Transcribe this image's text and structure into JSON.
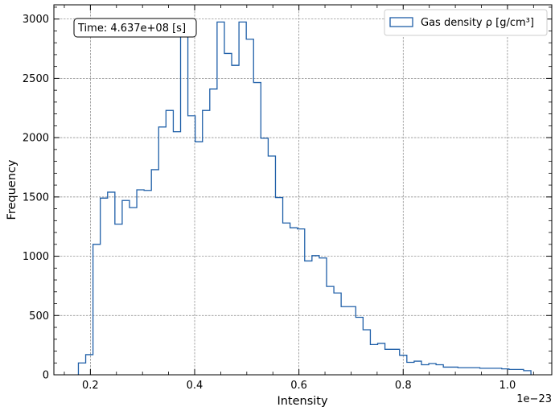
{
  "chart_data": {
    "type": "histogram",
    "xlabel": "Intensity",
    "ylabel": "Frequency",
    "x_offset_label": "1e−23",
    "x_scale": 1e-23,
    "xlim": [
      0.13,
      1.085
    ],
    "ylim": [
      0,
      3120
    ],
    "xticks": [
      0.2,
      0.4,
      0.6,
      0.8,
      1.0
    ],
    "xtick_labels": [
      "0.2",
      "0.4",
      "0.6",
      "0.8",
      "1.0"
    ],
    "yticks": [
      0,
      500,
      1000,
      1500,
      2000,
      2500,
      3000
    ],
    "ytick_labels": [
      "0",
      "500",
      "1000",
      "1500",
      "2000",
      "2500",
      "3000"
    ],
    "grid": true,
    "legend_position": "top-right",
    "series": [
      {
        "name": "Gas density ρ [g/cm³]",
        "color": "#1f5fa8",
        "bin_edges": [
          0.177,
          0.191,
          0.205,
          0.219,
          0.233,
          0.247,
          0.261,
          0.275,
          0.289,
          0.303,
          0.317,
          0.331,
          0.345,
          0.359,
          0.373,
          0.387,
          0.401,
          0.415,
          0.429,
          0.443,
          0.457,
          0.471,
          0.485,
          0.499,
          0.513,
          0.527,
          0.541,
          0.555,
          0.569,
          0.583,
          0.597,
          0.611,
          0.625,
          0.639,
          0.653,
          0.667,
          0.681,
          0.695,
          0.709,
          0.723,
          0.737,
          0.751,
          0.765,
          0.779,
          0.793,
          0.807,
          0.821,
          0.835,
          0.849,
          0.863,
          0.877,
          0.891,
          0.905,
          0.919,
          0.933,
          0.947,
          0.961,
          0.975,
          0.989,
          1.003,
          1.017,
          1.031,
          1.045
        ],
        "counts": [
          100,
          170,
          1100,
          1490,
          1540,
          1270,
          1470,
          1410,
          1560,
          1555,
          1730,
          2090,
          2230,
          2050,
          2940,
          2185,
          1965,
          2230,
          2410,
          2975,
          2710,
          2610,
          2975,
          2830,
          2465,
          1995,
          1845,
          1495,
          1280,
          1240,
          1230,
          960,
          1005,
          985,
          745,
          690,
          575,
          575,
          485,
          380,
          255,
          265,
          215,
          215,
          165,
          105,
          115,
          85,
          95,
          85,
          65,
          65,
          60,
          60,
          60,
          55,
          55,
          55,
          50,
          45,
          45,
          35
        ]
      }
    ],
    "annotation": "Time: 4.637e+08 [s]"
  }
}
